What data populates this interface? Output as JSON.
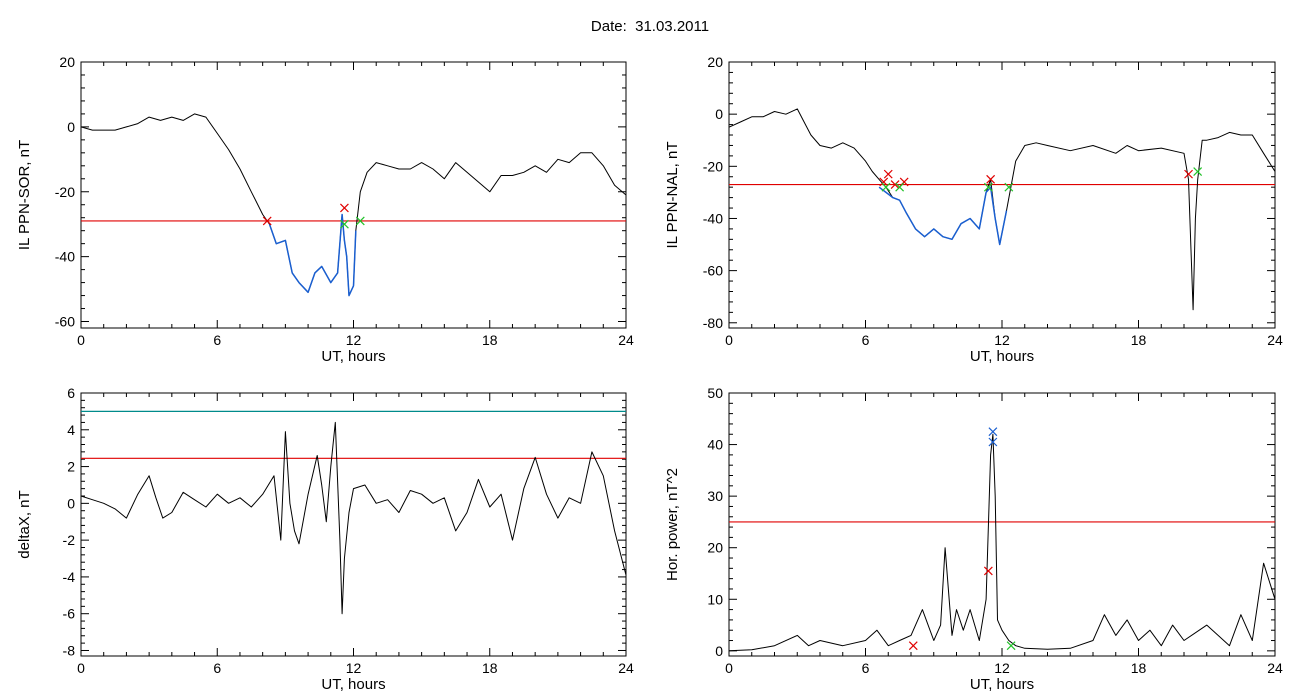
{
  "figure": {
    "title": "Date:  31.03.2011"
  },
  "chart_data": [
    {
      "type": "line",
      "xlabel": "UT, hours",
      "ylabel": "IL PPN-SOR, nT",
      "xlim": [
        0,
        24
      ],
      "ylim": [
        -62,
        20
      ],
      "xticks": [
        0,
        6,
        12,
        18,
        24
      ],
      "yticks": [
        -60,
        -40,
        -20,
        0,
        20
      ],
      "thresholds": [
        {
          "y": -29,
          "color": "#e00000"
        }
      ],
      "series": [
        {
          "color": "#000000",
          "x": [
            0,
            0.5,
            1,
            1.5,
            2,
            2.5,
            3,
            3.5,
            4,
            4.5,
            5,
            5.5,
            6,
            6.5,
            7,
            7.5,
            8,
            8.3,
            8.6,
            9,
            9.3,
            9.6,
            10,
            10.3,
            10.6,
            11,
            11.3,
            11.5,
            11.6,
            11.7,
            11.8,
            12,
            12.1,
            12.3,
            12.6,
            13,
            13.5,
            14,
            14.5,
            15,
            15.5,
            16,
            16.5,
            17,
            17.5,
            18,
            18.5,
            19,
            19.5,
            20,
            20.5,
            21,
            21.5,
            22,
            22.5,
            23,
            23.5,
            24
          ],
          "y": [
            0,
            -1,
            -1,
            -1,
            0,
            1,
            3,
            2,
            3,
            2,
            4,
            3,
            -2,
            -7,
            -13,
            -20,
            -27,
            -30,
            -36,
            -35,
            -45,
            -48,
            -51,
            -45,
            -43,
            -48,
            -45,
            -27,
            -35,
            -40,
            -52,
            -49,
            -32,
            -20,
            -14,
            -11,
            -12,
            -13,
            -13,
            -11,
            -13,
            -16,
            -11,
            -14,
            -17,
            -20,
            -15,
            -15,
            -14,
            -12,
            -14,
            -10,
            -11,
            -8,
            -8,
            -12,
            -18,
            -21
          ]
        },
        {
          "color": "#1a5fd0",
          "x": [
            8.3,
            8.6,
            9,
            9.3,
            9.6,
            10,
            10.3,
            10.6,
            11,
            11.3,
            11.5,
            11.6,
            11.7,
            11.8,
            12,
            12.1
          ],
          "y": [
            -30,
            -36,
            -35,
            -45,
            -48,
            -51,
            -45,
            -43,
            -48,
            -45,
            -27,
            -35,
            -40,
            -52,
            -49,
            -32
          ]
        }
      ],
      "markers": [
        {
          "x": 8.2,
          "y": -29,
          "color": "#e00000"
        },
        {
          "x": 11.6,
          "y": -25,
          "color": "#e00000"
        },
        {
          "x": 11.6,
          "y": -30,
          "color": "#22c22a"
        },
        {
          "x": 12.3,
          "y": -29,
          "color": "#22c22a"
        }
      ]
    },
    {
      "type": "line",
      "xlabel": "UT, hours",
      "ylabel": "IL PPN-NAL, nT",
      "xlim": [
        0,
        24
      ],
      "ylim": [
        -82,
        20
      ],
      "xticks": [
        0,
        6,
        12,
        18,
        24
      ],
      "yticks": [
        -80,
        -60,
        -40,
        -20,
        0,
        20
      ],
      "thresholds": [
        {
          "y": -27,
          "color": "#e00000"
        }
      ],
      "series": [
        {
          "color": "#000000",
          "x": [
            0,
            0.5,
            1,
            1.5,
            2,
            2.5,
            3,
            3.3,
            3.6,
            4,
            4.5,
            5,
            5.5,
            6,
            6.3,
            6.6,
            6.9,
            7.2,
            7.5,
            7.8,
            8.2,
            8.6,
            9,
            9.4,
            9.8,
            10.2,
            10.6,
            11,
            11.3,
            11.5,
            11.7,
            11.9,
            12.2,
            12.6,
            13,
            13.5,
            14,
            15,
            16,
            17,
            17.5,
            18,
            19,
            20,
            20.2,
            20.4,
            20.5,
            20.6,
            20.8,
            21,
            21.5,
            22,
            22.5,
            23,
            23.5,
            24
          ],
          "y": [
            -5,
            -3,
            -1,
            -1,
            1,
            0,
            2,
            -3,
            -8,
            -12,
            -13,
            -11,
            -13,
            -18,
            -22,
            -25,
            -28,
            -32,
            -33,
            -38,
            -44,
            -47,
            -44,
            -47,
            -48,
            -42,
            -40,
            -44,
            -30,
            -25,
            -40,
            -50,
            -37,
            -18,
            -12,
            -11,
            -12,
            -14,
            -12,
            -15,
            -12,
            -14,
            -13,
            -15,
            -25,
            -75,
            -40,
            -25,
            -10,
            -10,
            -9,
            -7,
            -8,
            -8,
            -15,
            -22
          ]
        },
        {
          "color": "#1a5fd0",
          "x": [
            6.6,
            6.9,
            7.2,
            7.5,
            7.8,
            8.2,
            8.6,
            9,
            9.4,
            9.8,
            10.2,
            10.6,
            11,
            11.3,
            11.5,
            11.7,
            11.9,
            12.2
          ],
          "y": [
            -28,
            -30,
            -32,
            -33,
            -38,
            -44,
            -47,
            -44,
            -47,
            -48,
            -42,
            -40,
            -44,
            -30,
            -28,
            -40,
            -50,
            -37
          ]
        }
      ],
      "markers": [
        {
          "x": 6.8,
          "y": -26,
          "color": "#e00000"
        },
        {
          "x": 7.0,
          "y": -23,
          "color": "#e00000"
        },
        {
          "x": 7.3,
          "y": -27,
          "color": "#e00000"
        },
        {
          "x": 7.7,
          "y": -26,
          "color": "#e00000"
        },
        {
          "x": 11.5,
          "y": -25,
          "color": "#e00000"
        },
        {
          "x": 20.2,
          "y": -23,
          "color": "#e00000"
        },
        {
          "x": 6.9,
          "y": -28,
          "color": "#22c22a"
        },
        {
          "x": 7.5,
          "y": -28,
          "color": "#22c22a"
        },
        {
          "x": 11.4,
          "y": -28,
          "color": "#22c22a"
        },
        {
          "x": 12.3,
          "y": -28,
          "color": "#22c22a"
        },
        {
          "x": 20.6,
          "y": -22,
          "color": "#22c22a"
        }
      ]
    },
    {
      "type": "line",
      "xlabel": "UT, hours",
      "ylabel": "deltaX, nT",
      "xlim": [
        0,
        24
      ],
      "ylim": [
        -8.3,
        6
      ],
      "xticks": [
        0,
        6,
        12,
        18,
        24
      ],
      "yticks": [
        -8,
        -6,
        -4,
        -2,
        0,
        2,
        4,
        6
      ],
      "thresholds": [
        {
          "y": 5.0,
          "color": "#008b8b"
        },
        {
          "y": 2.45,
          "color": "#e00000"
        }
      ],
      "series": [
        {
          "color": "#000000",
          "x": [
            0,
            0.5,
            1,
            1.5,
            2,
            2.5,
            3,
            3.3,
            3.6,
            4,
            4.5,
            5,
            5.5,
            6,
            6.5,
            7,
            7.5,
            8,
            8.5,
            8.8,
            9,
            9.2,
            9.4,
            9.6,
            10,
            10.4,
            10.6,
            10.8,
            11,
            11.2,
            11.4,
            11.5,
            11.6,
            11.8,
            12,
            12.5,
            13,
            13.5,
            14,
            14.5,
            15,
            15.5,
            16,
            16.5,
            17,
            17.5,
            18,
            18.5,
            19,
            19.5,
            20,
            20.5,
            21,
            21.5,
            22,
            22.5,
            23,
            23.5,
            24
          ],
          "y": [
            0.4,
            0.2,
            0,
            -0.3,
            -0.8,
            0.5,
            1.5,
            0.3,
            -0.8,
            -0.5,
            0.6,
            0.2,
            -0.2,
            0.5,
            0,
            0.3,
            -0.2,
            0.5,
            1.5,
            -2,
            3.9,
            0,
            -1.5,
            -2.2,
            0.5,
            2.6,
            1,
            -1,
            2,
            4.4,
            -2,
            -6,
            -3,
            -0.5,
            0.8,
            1,
            0,
            0.2,
            -0.5,
            0.7,
            0.5,
            0,
            0.3,
            -1.5,
            -0.5,
            1.3,
            -0.2,
            0.5,
            -2,
            0.8,
            2.5,
            0.5,
            -0.8,
            0.3,
            0,
            2.8,
            1.5,
            -1.5,
            -3.9
          ]
        }
      ],
      "markers": []
    },
    {
      "type": "line",
      "xlabel": "UT, hours",
      "ylabel": "Hor. power, nT^2",
      "xlim": [
        0,
        24
      ],
      "ylim": [
        -1,
        50
      ],
      "xticks": [
        0,
        6,
        12,
        18,
        24
      ],
      "yticks": [
        0,
        10,
        20,
        30,
        40,
        50
      ],
      "thresholds": [
        {
          "y": 25,
          "color": "#e00000"
        }
      ],
      "series": [
        {
          "color": "#000000",
          "x": [
            0,
            1,
            2,
            3,
            3.5,
            4,
            5,
            6,
            6.5,
            7,
            7.5,
            8,
            8.5,
            9,
            9.3,
            9.5,
            9.8,
            10,
            10.3,
            10.6,
            11,
            11.3,
            11.5,
            11.6,
            11.7,
            11.8,
            12,
            12.3,
            12.6,
            13,
            14,
            15,
            16,
            16.5,
            17,
            17.5,
            18,
            18.5,
            19,
            19.5,
            20,
            21,
            22,
            22.5,
            23,
            23.5,
            24
          ],
          "y": [
            0,
            0.2,
            1,
            3,
            1,
            2,
            1,
            2,
            4,
            1,
            2,
            3,
            8,
            2,
            5,
            20,
            3,
            8,
            4,
            8,
            2,
            10,
            38,
            42,
            30,
            6,
            4,
            2,
            1,
            0.5,
            0.3,
            0.5,
            2,
            7,
            3,
            6,
            2,
            4,
            1,
            5,
            2,
            5,
            1,
            7,
            2,
            17,
            10
          ]
        }
      ],
      "markers": [
        {
          "x": 8.1,
          "y": 1,
          "color": "#e00000"
        },
        {
          "x": 11.4,
          "y": 15.5,
          "color": "#e00000"
        },
        {
          "x": 11.6,
          "y": 40.5,
          "color": "#1a5fd0"
        },
        {
          "x": 11.6,
          "y": 42.5,
          "color": "#1a5fd0"
        },
        {
          "x": 12.4,
          "y": 1,
          "color": "#22c22a"
        }
      ]
    }
  ]
}
